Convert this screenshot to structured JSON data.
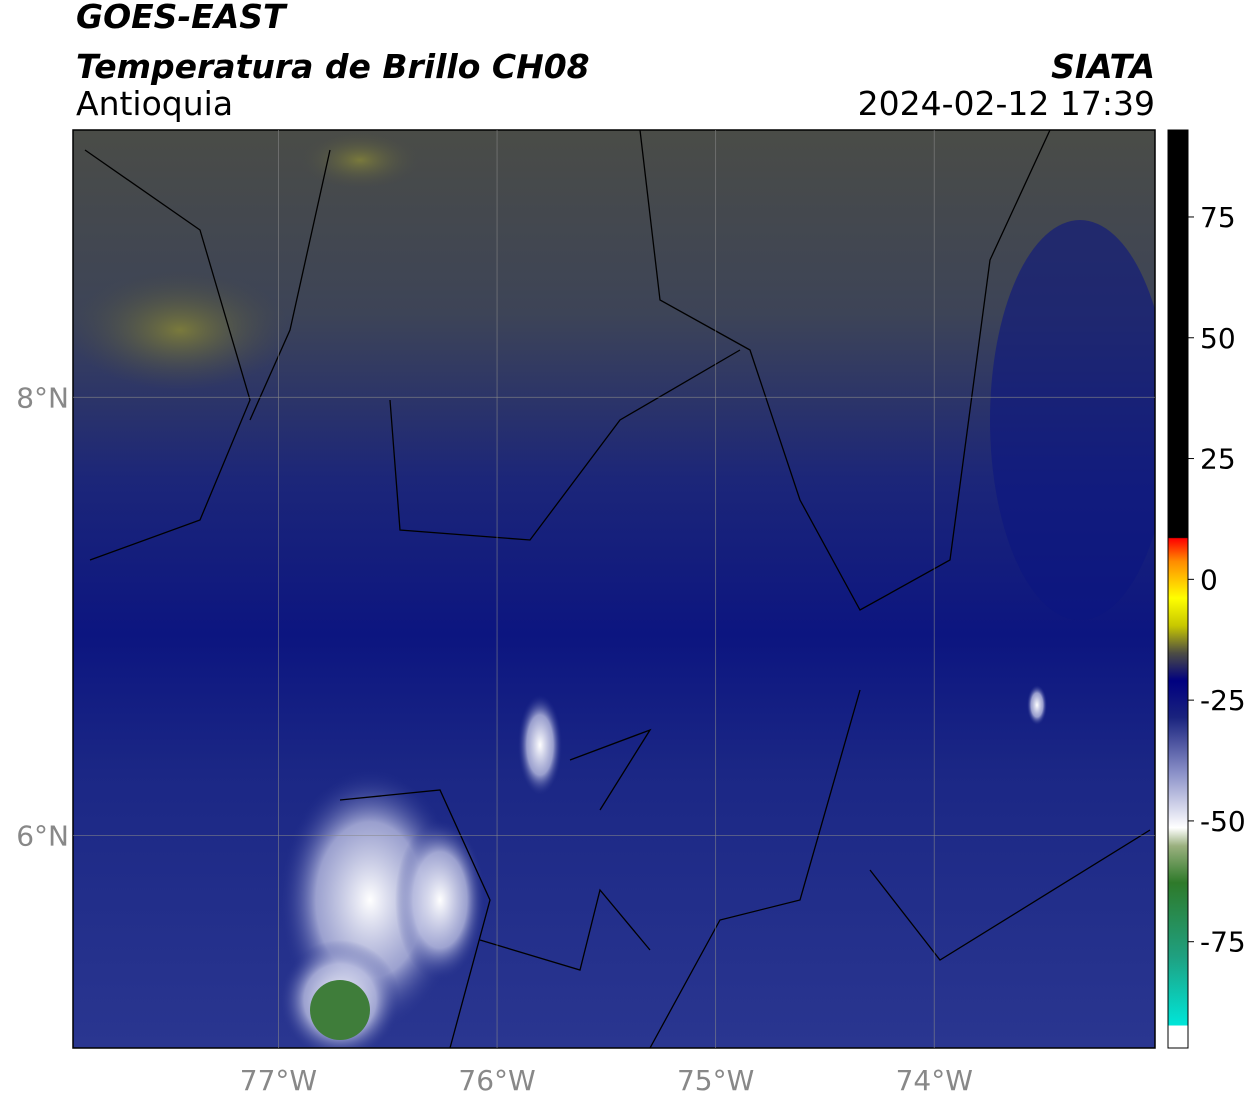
{
  "chart_data": {
    "type": "map",
    "title": "GOES-EAST",
    "subtitle": "Temperatura de Brillo CH08",
    "region": "Antioquia",
    "source": "SIATA",
    "datetime": "2024-02-12 17:39",
    "xlim": [
      -77.94,
      -72.99
    ],
    "ylim": [
      5.03,
      9.22
    ],
    "xticks": [
      {
        "value": -77,
        "label": "77°W"
      },
      {
        "value": -76,
        "label": "76°W"
      },
      {
        "value": -75,
        "label": "75°W"
      },
      {
        "value": -74,
        "label": "74°W"
      }
    ],
    "yticks": [
      {
        "value": 8,
        "label": "8°N"
      },
      {
        "value": 6,
        "label": "6°N"
      }
    ],
    "grid": true,
    "colorbar": {
      "lim": [
        -97,
        93
      ],
      "ticks": [
        75,
        50,
        25,
        0,
        -25,
        -50,
        -75
      ]
    }
  }
}
